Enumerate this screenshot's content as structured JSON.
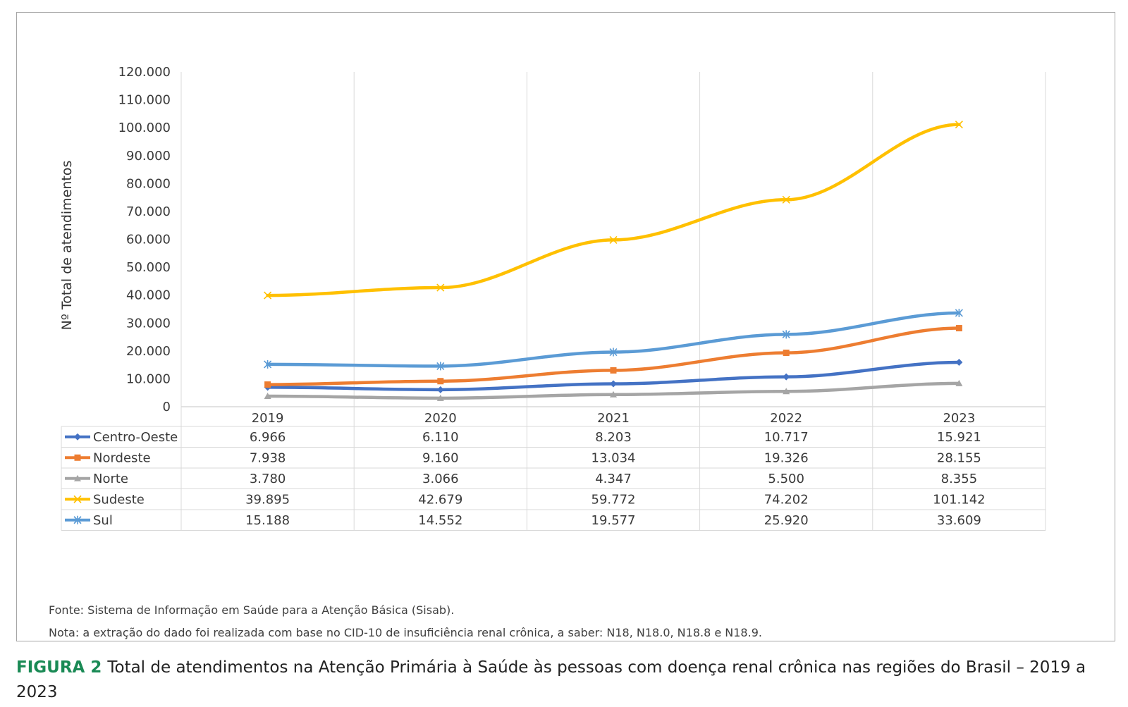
{
  "chart_data": {
    "type": "line",
    "ylabel": "Nº Total de atendimentos",
    "ylim": [
      0,
      120000
    ],
    "yticks": [
      "0",
      "10.000",
      "20.000",
      "30.000",
      "40.000",
      "50.000",
      "60.000",
      "70.000",
      "80.000",
      "90.000",
      "100.000",
      "110.000",
      "120.000"
    ],
    "categories": [
      "2019",
      "2020",
      "2021",
      "2022",
      "2023"
    ],
    "grid": true,
    "legend": "data-table",
    "series": [
      {
        "name": "Centro-Oeste",
        "values": [
          6966,
          6110,
          8203,
          10717,
          15921
        ],
        "labels": [
          "6.966",
          "6.110",
          "8.203",
          "10.717",
          "15.921"
        ],
        "color": "#4472c4",
        "marker": "diamond"
      },
      {
        "name": "Nordeste",
        "values": [
          7938,
          9160,
          13034,
          19326,
          28155
        ],
        "labels": [
          "7.938",
          "9.160",
          "13.034",
          "19.326",
          "28.155"
        ],
        "color": "#ed7d31",
        "marker": "square"
      },
      {
        "name": "Norte",
        "values": [
          3780,
          3066,
          4347,
          5500,
          8355
        ],
        "labels": [
          "3.780",
          "3.066",
          "4.347",
          "5.500",
          "8.355"
        ],
        "color": "#a5a5a5",
        "marker": "triangle"
      },
      {
        "name": "Sudeste",
        "values": [
          39895,
          42679,
          59772,
          74202,
          101142
        ],
        "labels": [
          "39.895",
          "42.679",
          "59.772",
          "74.202",
          "101.142"
        ],
        "color": "#ffc000",
        "marker": "x"
      },
      {
        "name": "Sul",
        "values": [
          15188,
          14552,
          19577,
          25920,
          33609
        ],
        "labels": [
          "15.188",
          "14.552",
          "19.577",
          "25.920",
          "33.609"
        ],
        "color": "#5b9bd5",
        "marker": "star"
      }
    ]
  },
  "notes": {
    "source": "Fonte: Sistema de Informação em Saúde para a Atenção Básica (Sisab).",
    "note": "Nota: a extração do dado foi realizada com base no CID-10 de insuficiência renal crônica, a saber: N18, N18.0, N18.8 e N18.9."
  },
  "caption": {
    "label": "FIGURA 2",
    "text": "Total de atendimentos na Atenção Primária à Saúde às pessoas com doença renal crônica nas regiões do Brasil – 2019 a 2023"
  }
}
